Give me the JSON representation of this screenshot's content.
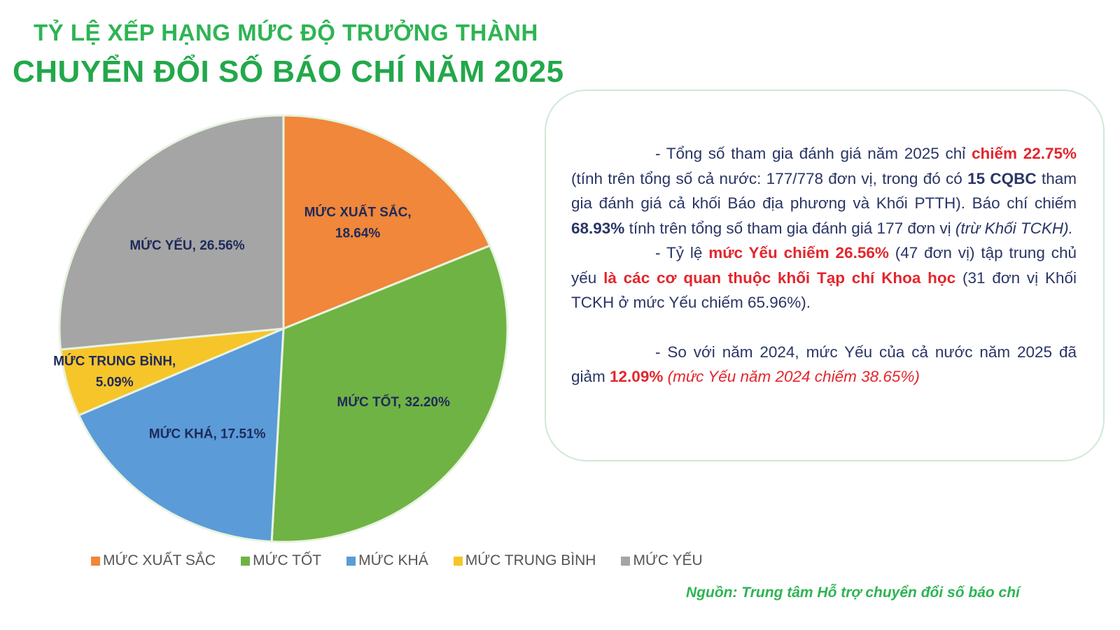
{
  "title_line1": "TỶ LỆ XẾP HẠNG MỨC ĐỘ TRƯỞNG THÀNH",
  "title_line2": "CHUYỂN ĐỔI SỐ BÁO CHÍ NĂM 2025",
  "chart_data": {
    "type": "pie",
    "start": "top, clockwise",
    "slices": [
      {
        "name": "MỨC XUẤT SẮC",
        "value": 18.64,
        "label": "MỨC XUẤT SẮC,",
        "label2": "18.64%",
        "color": "#f0873a"
      },
      {
        "name": "MỨC TỐT",
        "value": 32.2,
        "label": "MỨC TỐT, 32.20%",
        "label2": "",
        "color": "#6fb344"
      },
      {
        "name": "MỨC KHÁ",
        "value": 17.51,
        "label": "MỨC KHÁ, 17.51%",
        "label2": "",
        "color": "#5b9bd8"
      },
      {
        "name": "MỨC TRUNG BÌNH",
        "value": 5.09,
        "label": "MỨC TRUNG BÌNH,",
        "label2": "5.09%",
        "color": "#f6c52a"
      },
      {
        "name": "MỨC YẾU",
        "value": 26.56,
        "label": "MỨC YẾU, 26.56%",
        "label2": "",
        "color": "#a5a5a5"
      }
    ],
    "legend_position": "bottom"
  },
  "text": {
    "p1_a": "- Tổng số tham gia đánh giá năm 2025 chỉ ",
    "p1_b": "chiếm 22.75%",
    "p1_c": " (tính trên tổng số cả nước: 177/778 đơn vị, trong đó có ",
    "p1_d": "15 CQBC",
    "p1_e": " tham gia đánh giá cả khối Báo địa phương và Khối PTTH). Báo chí chiếm ",
    "p1_f": "68.93%",
    "p1_g": " tính trên tổng số tham gia đánh giá 177 đơn vị ",
    "p1_h": "(trừ Khối TCKH).",
    "p2_a": "- Tỷ lệ ",
    "p2_b": "mức Yếu chiếm 26.56%",
    "p2_c": " (47 đơn vị) tập trung chủ yếu ",
    "p2_d": "là các cơ quan thuộc khối Tạp chí Khoa học",
    "p2_e": " (31 đơn vị Khối TCKH ở mức Yếu chiếm 65.96%).",
    "p3_a": "- So với năm 2024, mức Yếu của cả nước năm 2025 đã giảm ",
    "p3_b": "12.09%",
    "p3_c": " ",
    "p3_d": "(mức Yếu năm 2024 chiếm 38.65%)"
  },
  "source": "Nguồn: Trung tâm Hỗ trợ chuyển đổi số báo chí"
}
